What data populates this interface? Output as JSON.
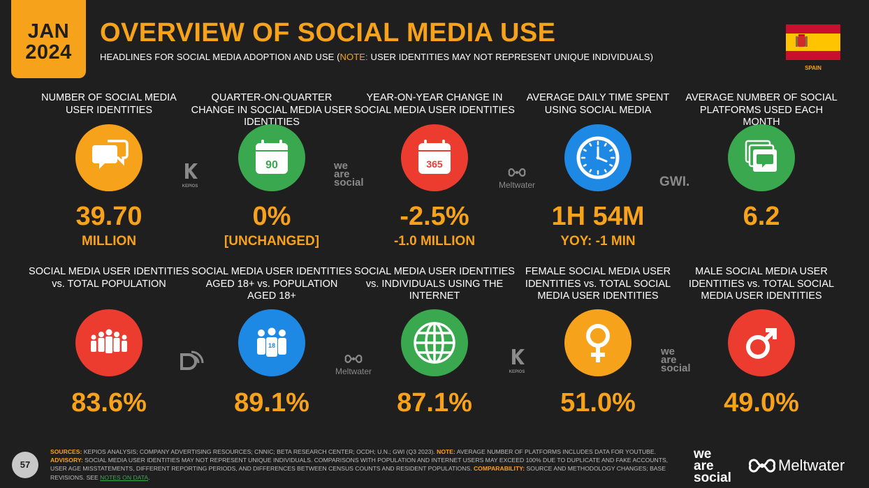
{
  "header": {
    "month": "JAN",
    "year": "2024",
    "title": "OVERVIEW OF SOCIAL MEDIA USE",
    "subtitle_pre": "HEADLINES FOR SOCIAL MEDIA ADOPTION AND USE (",
    "subtitle_note": "NOTE:",
    "subtitle_post": " USER IDENTITIES MAY NOT REPRESENT UNIQUE INDIVIDUALS)",
    "country": "SPAIN"
  },
  "row1": [
    {
      "label": "NUMBER OF SOCIAL MEDIA USER IDENTITIES",
      "value": "39.70",
      "sub": "MILLION",
      "icon": "chat-bubbles-icon",
      "color": "#f7a21b"
    },
    {
      "label": "QUARTER-ON-QUARTER CHANGE IN SOCIAL MEDIA USER IDENTITIES",
      "value": "0%",
      "sub": "[UNCHANGED]",
      "icon": "calendar-90-icon",
      "icon_text": "90",
      "color": "#3aa84f"
    },
    {
      "label": "YEAR-ON-YEAR CHANGE IN SOCIAL MEDIA USER IDENTITIES",
      "value": "-2.5%",
      "sub": "-1.0 MILLION",
      "icon": "calendar-365-icon",
      "icon_text": "365",
      "color": "#ec3c30"
    },
    {
      "label": "AVERAGE DAILY TIME SPENT USING SOCIAL MEDIA",
      "value": "1H 54M",
      "sub": "YOY: -1 MIN",
      "icon": "clock-icon",
      "color": "#1e88e5"
    },
    {
      "label": "AVERAGE NUMBER OF SOCIAL PLATFORMS USED EACH MONTH",
      "value": "6.2",
      "sub": "",
      "icon": "stacked-windows-icon",
      "color": "#3aa84f"
    }
  ],
  "row2": [
    {
      "label": "SOCIAL MEDIA USER IDENTITIES vs. TOTAL POPULATION",
      "value": "83.6%",
      "icon": "population-icon",
      "color": "#ec3c30"
    },
    {
      "label": "SOCIAL MEDIA USER IDENTITIES AGED 18+ vs. POPULATION AGED 18+",
      "value": "89.1%",
      "icon": "adults-18-icon",
      "icon_text": "18",
      "color": "#1e88e5"
    },
    {
      "label": "SOCIAL MEDIA USER IDENTITIES vs. INDIVIDUALS USING THE INTERNET",
      "value": "87.1%",
      "icon": "globe-icon",
      "color": "#3aa84f"
    },
    {
      "label": "FEMALE SOCIAL MEDIA USER IDENTITIES vs. TOTAL SOCIAL MEDIA USER IDENTITIES",
      "value": "51.0%",
      "icon": "female-icon",
      "color": "#f7a21b"
    },
    {
      "label": "MALE SOCIAL MEDIA USER IDENTITIES vs. TOTAL SOCIAL MEDIA USER IDENTITIES",
      "value": "49.0%",
      "icon": "male-icon",
      "color": "#ec3c30"
    }
  ],
  "sources": {
    "kepios": "KEPIOS",
    "we_are_social": [
      "we",
      "are",
      "social"
    ],
    "meltwater": "Meltwater",
    "gwi": "GWI."
  },
  "footer": {
    "page": "57",
    "sources_key": "SOURCES:",
    "sources_text": " KEPIOS ANALYSIS; COMPANY ADVERTISING RESOURCES; CNNIC; BETA RESEARCH CENTER; OCDH; U.N.; GWI (Q3 2023). ",
    "note_key": "NOTE:",
    "note_text": " AVERAGE NUMBER OF PLATFORMS INCLUDES DATA FOR YOUTUBE.",
    "advisory_key": "ADVISORY:",
    "advisory_text": " SOCIAL MEDIA USER IDENTITIES MAY NOT REPRESENT UNIQUE INDIVIDUALS. COMPARISONS WITH POPULATION AND INTERNET USERS MAY EXCEED 100% DUE TO DUPLICATE AND FAKE ACCOUNTS, USER AGE MISSTATEMENTS, DIFFERENT REPORTING PERIODS, AND DIFFERENCES BETWEEN CENSUS COUNTS AND RESIDENT POPULATIONS. ",
    "comparability_key": "COMPARABILITY:",
    "comparability_text": " SOURCE AND METHODOLOGY CHANGES; BASE REVISIONS. SEE ",
    "link_text": "NOTES ON DATA",
    "end_text": ".",
    "logo_we_are_social": [
      "we",
      "are",
      "social"
    ],
    "logo_meltwater": "Meltwater"
  },
  "colors": {
    "accent": "#f7a21b",
    "green": "#3aa84f",
    "red": "#ec3c30",
    "blue": "#1e88e5",
    "background": "#1f1f1f"
  }
}
